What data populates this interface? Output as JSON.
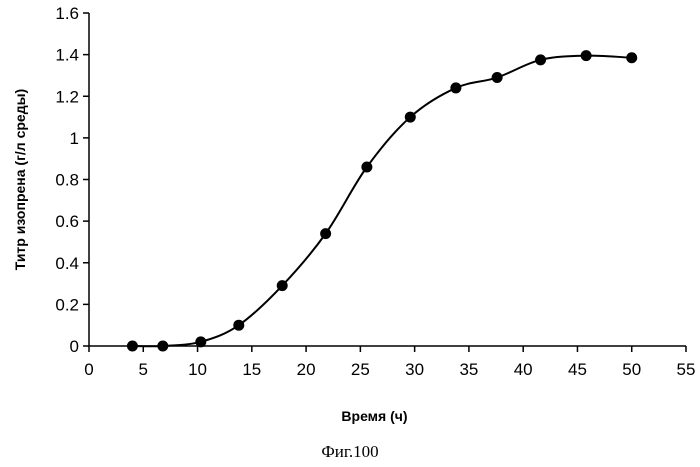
{
  "chart_data": {
    "type": "line",
    "title": "",
    "xlabel": "Время (ч)",
    "ylabel": "Титр изопрена (г/л среды)",
    "xlim": [
      0,
      55
    ],
    "ylim": [
      0,
      1.6
    ],
    "x_ticks": [
      "0",
      "5",
      "10",
      "15",
      "20",
      "25",
      "30",
      "35",
      "40",
      "45",
      "50",
      "55"
    ],
    "y_ticks": [
      "0",
      "0.2",
      "0.4",
      "0.6",
      "0.8",
      "1",
      "1.2",
      "1.4",
      "1.6"
    ],
    "grid": false,
    "legend": "none",
    "marker": "circle",
    "smooth": true,
    "series": [
      {
        "x": [
          4,
          6.8,
          10.3,
          13.8,
          17.8,
          21.8,
          25.6,
          29.6,
          33.8,
          37.6,
          41.6,
          45.8,
          50
        ],
        "y": [
          0,
          0,
          0.02,
          0.1,
          0.29,
          0.54,
          0.86,
          1.1,
          1.24,
          1.29,
          1.375,
          1.395,
          1.385
        ]
      }
    ],
    "colors": {
      "line": "#000000",
      "marker": "#000000"
    }
  },
  "caption": "Фиг.100"
}
